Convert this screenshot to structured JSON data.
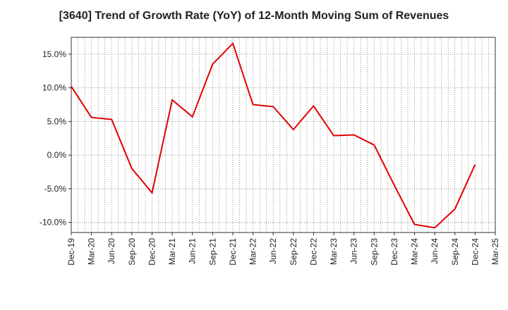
{
  "chart_data": {
    "type": "line",
    "title": "[3640]  Trend of Growth Rate (YoY) of 12-Month Moving Sum of Revenues",
    "xlabel": "",
    "ylabel": "",
    "x": [
      "Dec-19",
      "Mar-20",
      "Jun-20",
      "Sep-20",
      "Dec-20",
      "Mar-21",
      "Jun-21",
      "Sep-21",
      "Dec-21",
      "Mar-22",
      "Jun-22",
      "Sep-22",
      "Dec-22",
      "Mar-23",
      "Jun-23",
      "Sep-23",
      "Dec-23",
      "Mar-24",
      "Jun-24",
      "Sep-24",
      "Dec-24",
      "Mar-25"
    ],
    "y_ticks": [
      15.0,
      10.0,
      5.0,
      0.0,
      -5.0,
      -10.0
    ],
    "y_tick_labels": [
      "15.0%",
      "10.0%",
      "5.0%",
      "0.0%",
      "-5.0%",
      "-10.0%"
    ],
    "ylim": [
      -11.5,
      17.5
    ],
    "grid": true,
    "series": [
      {
        "color": "#e00000",
        "values": [
          10.2,
          5.6,
          5.3,
          -2.0,
          -5.6,
          8.2,
          5.7,
          13.5,
          16.6,
          7.5,
          7.2,
          3.8,
          7.3,
          2.9,
          3.0,
          1.5,
          -4.5,
          -10.3,
          -10.8,
          -8.0,
          -1.4,
          null
        ]
      }
    ]
  }
}
